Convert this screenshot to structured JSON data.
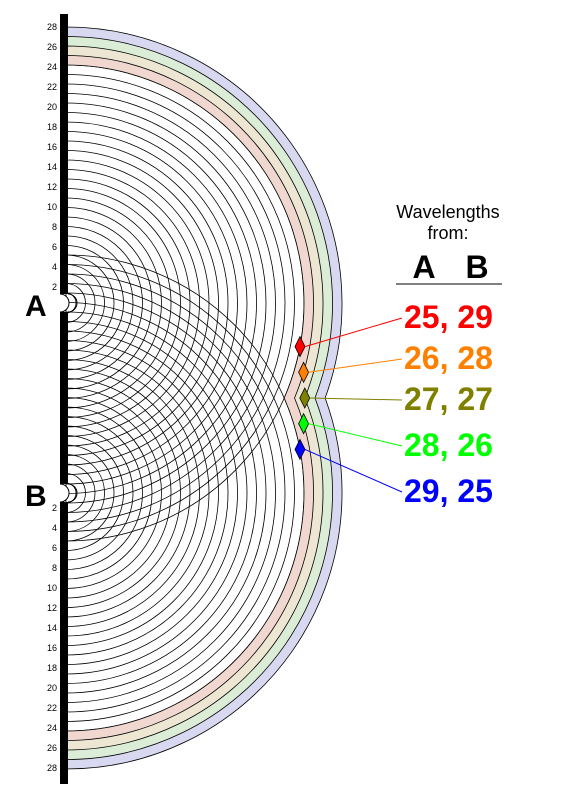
{
  "sources": {
    "a_label": "A",
    "b_label": "B"
  },
  "scale_ticks": {
    "a_side": [
      "28",
      "26",
      "24",
      "22",
      "20",
      "18",
      "16",
      "14",
      "12",
      "10",
      "8",
      "6",
      "4",
      "2"
    ],
    "b_side": [
      "2",
      "4",
      "6",
      "8",
      "10",
      "12",
      "14",
      "16",
      "18",
      "20",
      "22",
      "24",
      "26",
      "28"
    ]
  },
  "legend": {
    "title_line1": "Wavelengths",
    "title_line2": "from:",
    "col_a": "A",
    "col_b": "B",
    "entries": [
      {
        "text": "25, 29",
        "a": 25,
        "b": 29,
        "color": "#ff0000"
      },
      {
        "text": "26, 28",
        "a": 26,
        "b": 28,
        "color": "#ff8000"
      },
      {
        "text": "27, 27",
        "a": 27,
        "b": 27,
        "color": "#808000"
      },
      {
        "text": "28, 26",
        "a": 28,
        "b": 26,
        "color": "#00ff00"
      },
      {
        "text": "29, 25",
        "a": 29,
        "b": 25,
        "color": "#0000ff"
      }
    ]
  },
  "bands": [
    {
      "n": 29,
      "color": "#d8d8f0"
    },
    {
      "n": 28,
      "color": "#dbecd7"
    },
    {
      "n": 27,
      "color": "#ece6d2"
    },
    {
      "n": 26,
      "color": "#f0d8d0"
    }
  ],
  "wave_count": 25,
  "interior_arc_count": 10
}
